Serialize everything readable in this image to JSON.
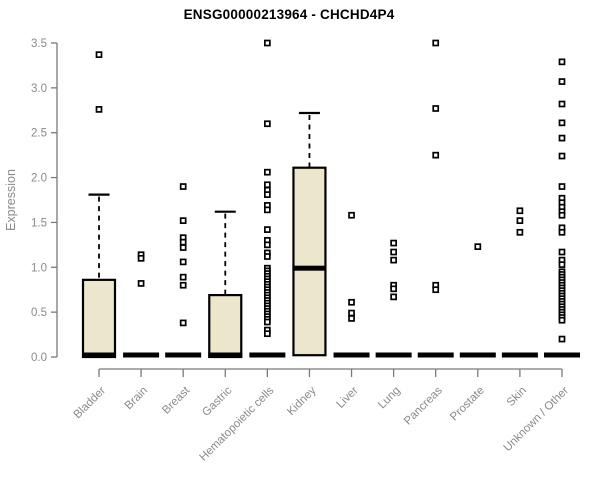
{
  "chart_data": {
    "type": "boxplot",
    "title": "ENSG00000213964 - CHCHD4P4",
    "ylabel": "Expression",
    "xlabel": "",
    "ylim": [
      0,
      3.5
    ],
    "yticks": [
      0.0,
      0.5,
      1.0,
      1.5,
      2.0,
      2.5,
      3.0,
      3.5
    ],
    "grid": false,
    "legend": "none",
    "box_fill_color": "#ECE7CC",
    "box_stroke_color": "#000000",
    "axis_color": "#7a7a7a",
    "tick_label_color": "#8a8a8a",
    "outlier_marker": "open-square",
    "categories": [
      "Bladder",
      "Brain",
      "Breast",
      "Gastric",
      "Hematopoietic cells",
      "Kidney",
      "Liver",
      "Lung",
      "Pancreas",
      "Prostate",
      "Skin",
      "Unknown / Other"
    ],
    "series": [
      {
        "name": "Bladder",
        "q1": 0,
        "median": 0,
        "q3": 0.86,
        "whisker_low": 0,
        "whisker_high": 1.81,
        "outliers": [
          2.76,
          3.37
        ]
      },
      {
        "name": "Brain",
        "q1": 0,
        "median": 0,
        "q3": 0,
        "whisker_low": 0,
        "whisker_high": 0,
        "outliers": [
          1.14,
          1.1,
          0.82
        ]
      },
      {
        "name": "Breast",
        "q1": 0,
        "median": 0,
        "q3": 0,
        "whisker_low": 0,
        "whisker_high": 0,
        "outliers": [
          1.9,
          1.52,
          1.33,
          1.28,
          1.22,
          1.06,
          0.89,
          0.8,
          0.38
        ]
      },
      {
        "name": "Gastric",
        "q1": 0,
        "median": 0,
        "q3": 0.69,
        "whisker_low": 0,
        "whisker_high": 1.62,
        "outliers": []
      },
      {
        "name": "Hematopoietic cells",
        "q1": 0,
        "median": 0,
        "q3": 0,
        "whisker_low": 0,
        "whisker_high": 0,
        "outliers": [
          3.5,
          2.6,
          2.06,
          1.92,
          1.86,
          1.81,
          1.69,
          1.64,
          1.42,
          1.3,
          1.25,
          1.16,
          1.12,
          0.99,
          0.96,
          0.93,
          0.9,
          0.87,
          0.84,
          0.81,
          0.78,
          0.75,
          0.72,
          0.69,
          0.66,
          0.63,
          0.6,
          0.57,
          0.54,
          0.51,
          0.48,
          0.45,
          0.42,
          0.39,
          0.3,
          0.26
        ]
      },
      {
        "name": "Kidney",
        "q1": 0.02,
        "median": 0.99,
        "q3": 2.11,
        "whisker_low": 0.02,
        "whisker_high": 2.72,
        "outliers": []
      },
      {
        "name": "Liver",
        "q1": 0,
        "median": 0,
        "q3": 0,
        "whisker_low": 0,
        "whisker_high": 0,
        "outliers": [
          1.58,
          0.61,
          0.49,
          0.43
        ]
      },
      {
        "name": "Lung",
        "q1": 0,
        "median": 0,
        "q3": 0,
        "whisker_low": 0,
        "whisker_high": 0,
        "outliers": [
          1.27,
          1.17,
          1.08,
          0.8,
          0.76,
          0.67
        ]
      },
      {
        "name": "Pancreas",
        "q1": 0,
        "median": 0,
        "q3": 0,
        "whisker_low": 0,
        "whisker_high": 0,
        "outliers": [
          3.5,
          2.77,
          2.25,
          0.8,
          0.75
        ]
      },
      {
        "name": "Prostate",
        "q1": 0,
        "median": 0,
        "q3": 0,
        "whisker_low": 0,
        "whisker_high": 0,
        "outliers": [
          1.23
        ]
      },
      {
        "name": "Skin",
        "q1": 0,
        "median": 0,
        "q3": 0,
        "whisker_low": 0,
        "whisker_high": 0,
        "outliers": [
          1.63,
          1.52,
          1.39
        ]
      },
      {
        "name": "Unknown / Other",
        "q1": 0,
        "median": 0,
        "q3": 0,
        "whisker_low": 0,
        "whisker_high": 0,
        "outliers": [
          3.29,
          3.07,
          2.82,
          2.61,
          2.44,
          2.24,
          1.9,
          1.77,
          1.72,
          1.67,
          1.62,
          1.58,
          1.44,
          1.39,
          1.17,
          1.08,
          1.03,
          0.95,
          0.92,
          0.89,
          0.86,
          0.83,
          0.8,
          0.77,
          0.74,
          0.71,
          0.68,
          0.65,
          0.62,
          0.59,
          0.56,
          0.53,
          0.5,
          0.47,
          0.44,
          0.41,
          0.2
        ]
      }
    ]
  }
}
